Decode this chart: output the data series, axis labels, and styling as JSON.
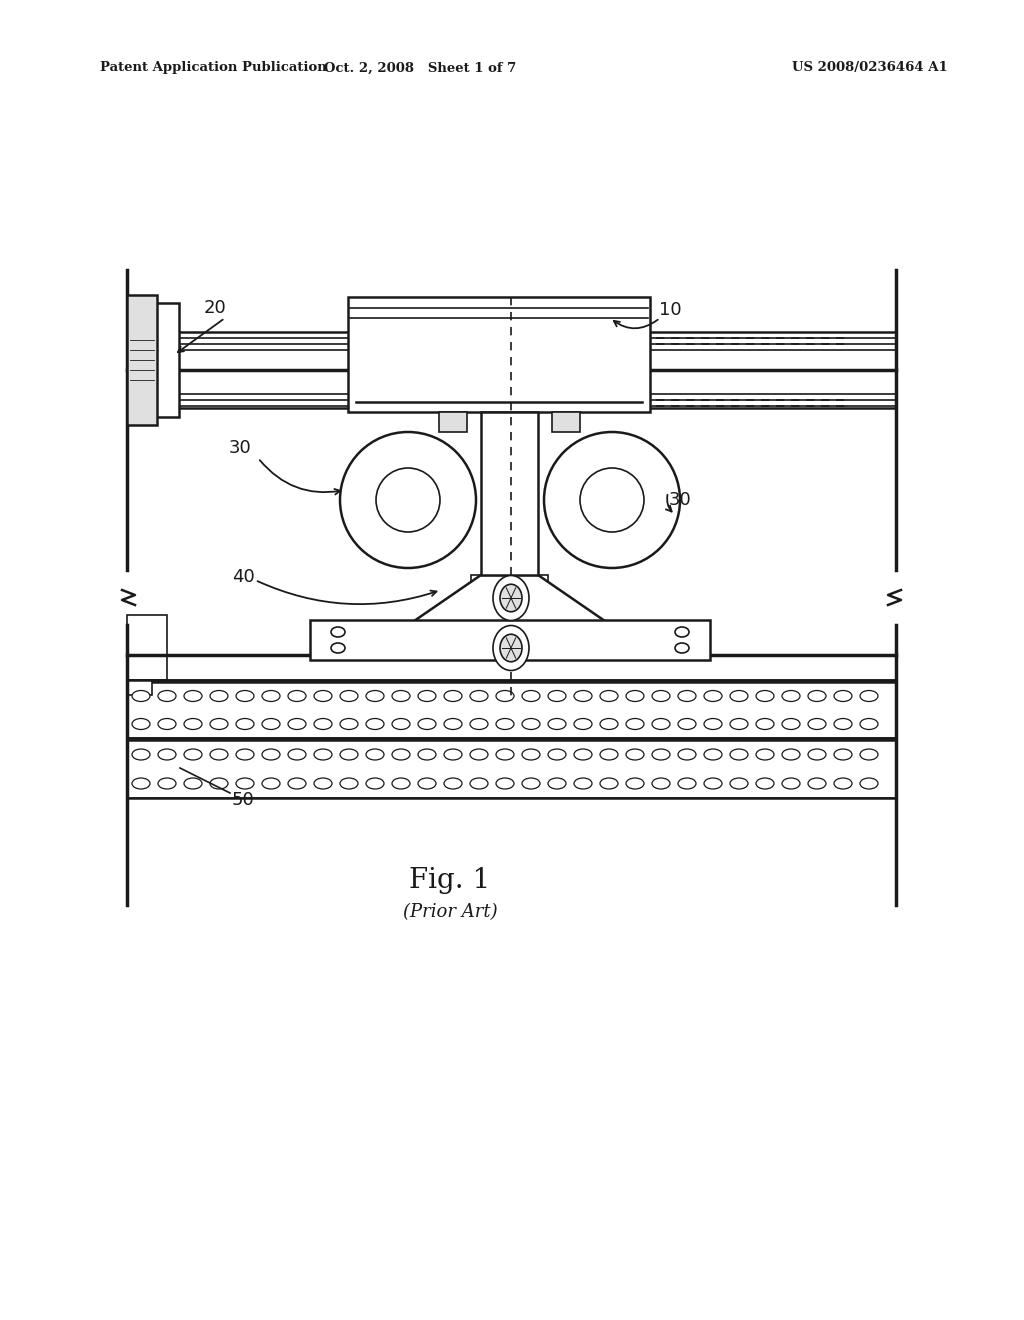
{
  "background_color": "#ffffff",
  "header_left": "Patent Application Publication",
  "header_center": "Oct. 2, 2008   Sheet 1 of 7",
  "header_right": "US 2008/0236464 A1",
  "fig_label": "Fig. 1",
  "fig_sublabel": "(Prior Art)",
  "line_color": "#1a1a1a",
  "fill_light": "#f0f0f0",
  "fill_mid": "#e0e0e0",
  "fill_dark": "#c8c8c8"
}
